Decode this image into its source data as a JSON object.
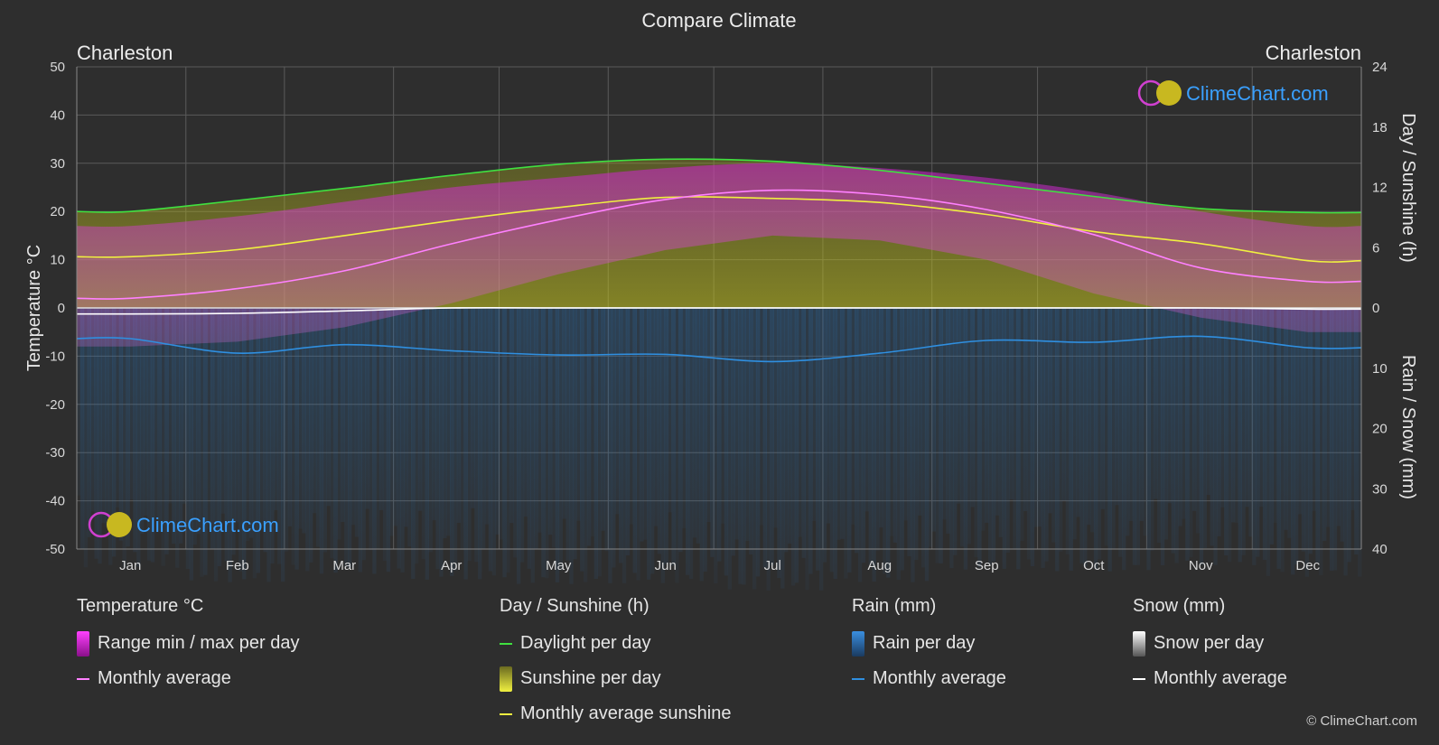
{
  "title": "Compare Climate",
  "location_left": "Charleston",
  "location_right": "Charleston",
  "watermark": "ClimeChart.com",
  "copyright": "© ClimeChart.com",
  "colors": {
    "background": "#2e2e2e",
    "temp_range": "#d020d0",
    "temp_avg": "#ff80ff",
    "daylight": "#40e040",
    "sunshine_fill": "#b8b820",
    "sunshine_avg": "#f0f040",
    "rain_fill": "#2a6fb0",
    "rain_avg": "#2f8fe0",
    "snow_fill": "#9a9a9a",
    "snow_avg": "#ffffff",
    "brand": "#3aa0ff"
  },
  "legend": {
    "temperature": {
      "heading": "Temperature °C",
      "range": "Range min / max per day",
      "avg": "Monthly average"
    },
    "sunshine": {
      "heading": "Day / Sunshine (h)",
      "daylight": "Daylight per day",
      "sunshine": "Sunshine per day",
      "avg": "Monthly average sunshine"
    },
    "rain": {
      "heading": "Rain (mm)",
      "per_day": "Rain per day",
      "avg": "Monthly average"
    },
    "snow": {
      "heading": "Snow (mm)",
      "per_day": "Snow per day",
      "avg": "Monthly average"
    }
  },
  "chart_data": {
    "type": "area",
    "categories": [
      "Jan",
      "Feb",
      "Mar",
      "Apr",
      "May",
      "Jun",
      "Jul",
      "Aug",
      "Sep",
      "Oct",
      "Nov",
      "Dec"
    ],
    "y_left": {
      "label": "Temperature °C",
      "range": [
        -50,
        50
      ],
      "ticks": [
        50,
        40,
        30,
        20,
        10,
        0,
        -10,
        -20,
        -30,
        -40,
        -50
      ]
    },
    "y_right_top": {
      "label": "Day / Sunshine (h)",
      "range": [
        0,
        24
      ],
      "ticks": [
        24,
        18,
        12,
        6,
        0
      ]
    },
    "y_right_bottom": {
      "label": "Rain / Snow (mm)",
      "range": [
        0,
        40
      ],
      "ticks": [
        0,
        10,
        20,
        30,
        40
      ]
    },
    "grid": true,
    "series": [
      {
        "name": "Daylight per day",
        "unit": "h",
        "values": [
          9.6,
          10.7,
          11.9,
          13.2,
          14.3,
          14.8,
          14.6,
          13.7,
          12.4,
          11.1,
          9.9,
          9.5
        ]
      },
      {
        "name": "Monthly average sunshine",
        "unit": "h",
        "values": [
          5.1,
          5.8,
          7.2,
          8.7,
          10.0,
          11.0,
          10.9,
          10.5,
          9.3,
          7.6,
          6.4,
          4.7
        ]
      },
      {
        "name": "Monthly average (temperature)",
        "unit": "°C",
        "values": [
          2.0,
          4.0,
          7.7,
          13.3,
          18.3,
          22.5,
          24.4,
          23.5,
          20.4,
          15.2,
          8.3,
          5.5
        ]
      },
      {
        "name": "Temperature range max",
        "unit": "°C",
        "values": [
          17,
          19,
          22,
          25,
          27,
          29,
          30,
          29,
          27,
          24,
          20,
          17
        ]
      },
      {
        "name": "Temperature range min",
        "unit": "°C",
        "values": [
          -8,
          -7,
          -4,
          1,
          7,
          12,
          15,
          14,
          10,
          3,
          -2,
          -5
        ]
      },
      {
        "name": "Monthly average (rain)",
        "unit": "mm",
        "values": [
          5.1,
          7.5,
          6.1,
          7.1,
          7.8,
          7.7,
          8.9,
          7.5,
          5.4,
          5.7,
          4.7,
          6.6
        ]
      },
      {
        "name": "Monthly average (snow)",
        "unit": "mm",
        "values": [
          1.0,
          0.9,
          0.5,
          0,
          0,
          0,
          0,
          0,
          0,
          0,
          0,
          0.2
        ]
      }
    ]
  }
}
